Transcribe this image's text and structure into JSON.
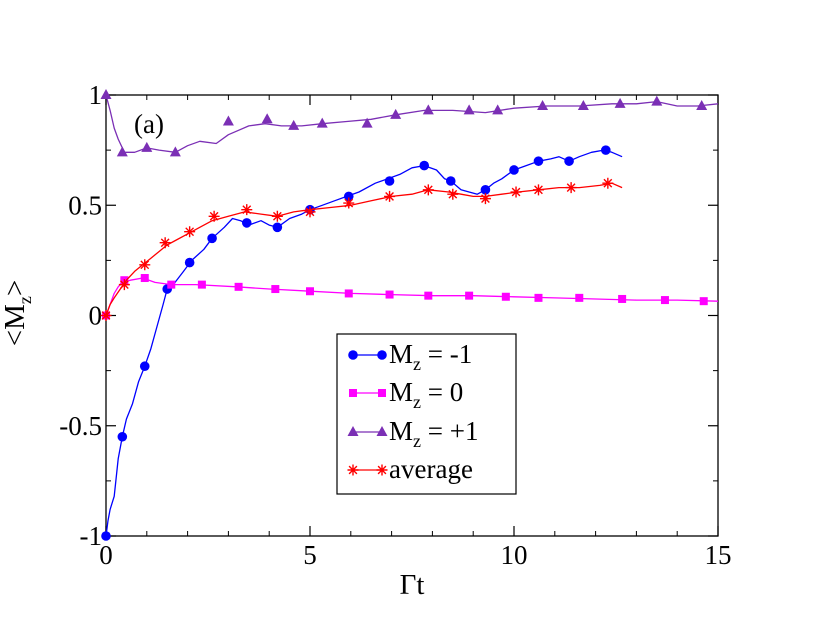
{
  "chart_data": {
    "type": "line",
    "panel_label": "(a)",
    "xlabel": "Γt",
    "ylabel": {
      "main": "<M",
      "sub": "z",
      "close": ">"
    },
    "xlim": [
      0,
      15
    ],
    "ylim": [
      -1,
      1
    ],
    "xticks": [
      0,
      5,
      10,
      15
    ],
    "xtick_labels": [
      "0",
      "5",
      "10",
      "15"
    ],
    "yticks": [
      -1,
      -0.5,
      0,
      0.5,
      1
    ],
    "ytick_labels": [
      "-1",
      "-0.5",
      "0",
      "0.5",
      "1"
    ],
    "legend_position": "center-bottom",
    "series": [
      {
        "name": "Mz = -1",
        "legend": {
          "main": "M",
          "sub": "z",
          "rest": " = -1"
        },
        "color": "#0000ff",
        "marker": "circle",
        "line": [
          [
            0,
            -1
          ],
          [
            0.05,
            -0.93
          ],
          [
            0.1,
            -0.88
          ],
          [
            0.2,
            -0.82
          ],
          [
            0.3,
            -0.65
          ],
          [
            0.4,
            -0.55
          ],
          [
            0.5,
            -0.47
          ],
          [
            0.65,
            -0.4
          ],
          [
            0.8,
            -0.3
          ],
          [
            0.95,
            -0.23
          ],
          [
            1.1,
            -0.15
          ],
          [
            1.25,
            -0.05
          ],
          [
            1.4,
            0.05
          ],
          [
            1.5,
            0.12
          ],
          [
            1.65,
            0.14
          ],
          [
            1.9,
            0.2
          ],
          [
            2.1,
            0.25
          ],
          [
            2.4,
            0.3
          ],
          [
            2.6,
            0.35
          ],
          [
            2.9,
            0.4
          ],
          [
            3.1,
            0.44
          ],
          [
            3.3,
            0.43
          ],
          [
            3.5,
            0.41
          ],
          [
            3.8,
            0.43
          ],
          [
            4.0,
            0.41
          ],
          [
            4.2,
            0.4
          ],
          [
            4.5,
            0.44
          ],
          [
            4.8,
            0.46
          ],
          [
            5.0,
            0.48
          ],
          [
            5.3,
            0.5
          ],
          [
            5.6,
            0.52
          ],
          [
            5.9,
            0.54
          ],
          [
            6.2,
            0.56
          ],
          [
            6.6,
            0.6
          ],
          [
            6.9,
            0.62
          ],
          [
            7.2,
            0.64
          ],
          [
            7.5,
            0.67
          ],
          [
            7.8,
            0.68
          ],
          [
            8.1,
            0.66
          ],
          [
            8.3,
            0.62
          ],
          [
            8.45,
            0.61
          ],
          [
            8.7,
            0.57
          ],
          [
            8.9,
            0.56
          ],
          [
            9.1,
            0.55
          ],
          [
            9.3,
            0.57
          ],
          [
            9.5,
            0.6
          ],
          [
            9.7,
            0.62
          ],
          [
            10.0,
            0.66
          ],
          [
            10.3,
            0.68
          ],
          [
            10.6,
            0.7
          ],
          [
            10.9,
            0.71
          ],
          [
            11.1,
            0.72
          ],
          [
            11.35,
            0.7
          ],
          [
            11.6,
            0.72
          ],
          [
            11.9,
            0.74
          ],
          [
            12.2,
            0.75
          ],
          [
            12.4,
            0.74
          ],
          [
            12.65,
            0.72
          ]
        ],
        "markers": [
          [
            0,
            -1
          ],
          [
            0.4,
            -0.55
          ],
          [
            0.95,
            -0.23
          ],
          [
            1.5,
            0.12
          ],
          [
            2.05,
            0.24
          ],
          [
            2.6,
            0.35
          ],
          [
            3.45,
            0.42
          ],
          [
            4.2,
            0.4
          ],
          [
            5.0,
            0.48
          ],
          [
            5.95,
            0.54
          ],
          [
            6.95,
            0.61
          ],
          [
            7.8,
            0.68
          ],
          [
            8.45,
            0.61
          ],
          [
            9.3,
            0.57
          ],
          [
            10.0,
            0.66
          ],
          [
            10.6,
            0.7
          ],
          [
            11.35,
            0.7
          ],
          [
            12.25,
            0.75
          ]
        ]
      },
      {
        "name": "Mz = 0",
        "legend": {
          "main": "M",
          "sub": "z",
          "rest": " = 0"
        },
        "color": "#ff00ff",
        "marker": "square",
        "line": [
          [
            0,
            0
          ],
          [
            0.1,
            0.05
          ],
          [
            0.2,
            0.1
          ],
          [
            0.3,
            0.13
          ],
          [
            0.4,
            0.15
          ],
          [
            0.6,
            0.16
          ],
          [
            0.9,
            0.17
          ],
          [
            1.2,
            0.15
          ],
          [
            1.6,
            0.14
          ],
          [
            2.2,
            0.14
          ],
          [
            3.2,
            0.13
          ],
          [
            4.0,
            0.12
          ],
          [
            5.0,
            0.11
          ],
          [
            6.0,
            0.1
          ],
          [
            7.0,
            0.095
          ],
          [
            8.0,
            0.09
          ],
          [
            9.0,
            0.09
          ],
          [
            10.0,
            0.085
          ],
          [
            11.0,
            0.08
          ],
          [
            12.0,
            0.075
          ],
          [
            13.0,
            0.07
          ],
          [
            14.0,
            0.07
          ],
          [
            15.0,
            0.065
          ]
        ],
        "markers": [
          [
            0,
            0
          ],
          [
            0.45,
            0.16
          ],
          [
            0.95,
            0.17
          ],
          [
            1.6,
            0.14
          ],
          [
            2.35,
            0.14
          ],
          [
            3.25,
            0.13
          ],
          [
            4.15,
            0.12
          ],
          [
            5.0,
            0.11
          ],
          [
            5.95,
            0.1
          ],
          [
            6.95,
            0.095
          ],
          [
            7.9,
            0.09
          ],
          [
            8.9,
            0.09
          ],
          [
            9.8,
            0.085
          ],
          [
            10.6,
            0.08
          ],
          [
            11.6,
            0.08
          ],
          [
            12.65,
            0.075
          ],
          [
            13.7,
            0.07
          ],
          [
            14.65,
            0.065
          ]
        ]
      },
      {
        "name": "Mz = +1",
        "legend": {
          "main": "M",
          "sub": "z",
          "rest": " = +1"
        },
        "color": "#7b2fb5",
        "marker": "triangle",
        "line": [
          [
            0,
            1
          ],
          [
            0.1,
            0.93
          ],
          [
            0.2,
            0.85
          ],
          [
            0.3,
            0.8
          ],
          [
            0.45,
            0.74
          ],
          [
            0.7,
            0.74
          ],
          [
            1.0,
            0.76
          ],
          [
            1.3,
            0.75
          ],
          [
            1.7,
            0.74
          ],
          [
            2.0,
            0.77
          ],
          [
            2.3,
            0.79
          ],
          [
            2.7,
            0.78
          ],
          [
            3.0,
            0.82
          ],
          [
            3.5,
            0.86
          ],
          [
            3.9,
            0.87
          ],
          [
            4.3,
            0.86
          ],
          [
            4.8,
            0.86
          ],
          [
            5.3,
            0.87
          ],
          [
            5.9,
            0.88
          ],
          [
            6.5,
            0.89
          ],
          [
            7.1,
            0.91
          ],
          [
            7.8,
            0.93
          ],
          [
            8.5,
            0.93
          ],
          [
            9.3,
            0.92
          ],
          [
            10.0,
            0.94
          ],
          [
            10.8,
            0.95
          ],
          [
            11.6,
            0.95
          ],
          [
            12.4,
            0.96
          ],
          [
            13.0,
            0.96
          ],
          [
            13.5,
            0.97
          ],
          [
            14.0,
            0.95
          ],
          [
            14.5,
            0.95
          ],
          [
            15.0,
            0.96
          ]
        ],
        "markers": [
          [
            0,
            1
          ],
          [
            0.4,
            0.74
          ],
          [
            1.0,
            0.76
          ],
          [
            1.7,
            0.74
          ],
          [
            3.0,
            0.88
          ],
          [
            3.95,
            0.89
          ],
          [
            4.6,
            0.86
          ],
          [
            5.3,
            0.87
          ],
          [
            6.4,
            0.87
          ],
          [
            7.1,
            0.91
          ],
          [
            7.9,
            0.93
          ],
          [
            8.9,
            0.93
          ],
          [
            9.6,
            0.93
          ],
          [
            10.7,
            0.95
          ],
          [
            11.7,
            0.95
          ],
          [
            12.6,
            0.96
          ],
          [
            13.5,
            0.97
          ],
          [
            14.6,
            0.95
          ]
        ]
      },
      {
        "name": "average",
        "legend": {
          "main": "average",
          "sub": "",
          "rest": ""
        },
        "color": "#ff0000",
        "marker": "star",
        "line": [
          [
            0,
            0
          ],
          [
            0.1,
            0.05
          ],
          [
            0.2,
            0.08
          ],
          [
            0.35,
            0.12
          ],
          [
            0.5,
            0.16
          ],
          [
            0.7,
            0.2
          ],
          [
            0.9,
            0.23
          ],
          [
            1.1,
            0.26
          ],
          [
            1.3,
            0.29
          ],
          [
            1.5,
            0.32
          ],
          [
            1.7,
            0.34
          ],
          [
            2.0,
            0.37
          ],
          [
            2.3,
            0.4
          ],
          [
            2.6,
            0.43
          ],
          [
            3.0,
            0.45
          ],
          [
            3.4,
            0.47
          ],
          [
            3.8,
            0.46
          ],
          [
            4.2,
            0.45
          ],
          [
            4.6,
            0.47
          ],
          [
            5.0,
            0.48
          ],
          [
            5.5,
            0.49
          ],
          [
            6.0,
            0.5
          ],
          [
            6.5,
            0.52
          ],
          [
            7.0,
            0.54
          ],
          [
            7.5,
            0.55
          ],
          [
            7.9,
            0.57
          ],
          [
            8.4,
            0.56
          ],
          [
            8.7,
            0.55
          ],
          [
            9.0,
            0.54
          ],
          [
            9.3,
            0.54
          ],
          [
            9.7,
            0.55
          ],
          [
            10.1,
            0.56
          ],
          [
            10.6,
            0.57
          ],
          [
            11.1,
            0.58
          ],
          [
            11.6,
            0.58
          ],
          [
            12.1,
            0.59
          ],
          [
            12.4,
            0.6
          ],
          [
            12.65,
            0.58
          ]
        ],
        "markers": [
          [
            0,
            0
          ],
          [
            0.45,
            0.14
          ],
          [
            0.95,
            0.23
          ],
          [
            1.45,
            0.33
          ],
          [
            2.05,
            0.38
          ],
          [
            2.65,
            0.45
          ],
          [
            3.45,
            0.48
          ],
          [
            4.2,
            0.45
          ],
          [
            5.0,
            0.47
          ],
          [
            5.95,
            0.51
          ],
          [
            6.95,
            0.54
          ],
          [
            7.9,
            0.57
          ],
          [
            8.5,
            0.55
          ],
          [
            9.3,
            0.53
          ],
          [
            10.05,
            0.56
          ],
          [
            10.6,
            0.57
          ],
          [
            11.4,
            0.58
          ],
          [
            12.3,
            0.6
          ]
        ]
      }
    ]
  }
}
